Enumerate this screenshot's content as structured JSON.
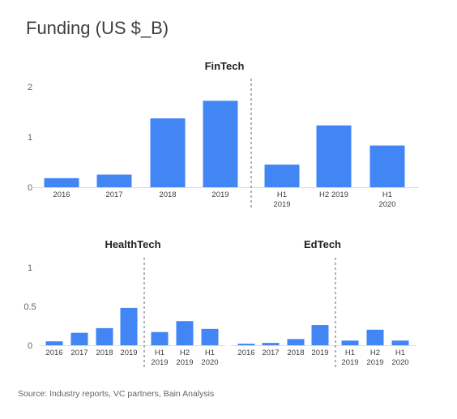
{
  "title": "Funding (US $_B)",
  "source": "Source: Industry reports, VC partners, Bain Analysis",
  "colors": {
    "bar": "#4285f4",
    "axis": "#dadce0",
    "divider": "#5f6368"
  },
  "chart_data": [
    {
      "type": "bar",
      "title": "FinTech",
      "ylim": [
        0,
        2
      ],
      "yticks": [
        "0",
        "1",
        "2"
      ],
      "categories": [
        [
          "2016"
        ],
        [
          "2017"
        ],
        [
          "2018"
        ],
        [
          "2019"
        ],
        [
          "H1",
          "2019"
        ],
        [
          "H2 2019"
        ],
        [
          "H1",
          "2020"
        ]
      ],
      "values": [
        0.18,
        0.25,
        1.37,
        1.72,
        0.45,
        1.23,
        0.83
      ],
      "divider_after": 4
    },
    {
      "type": "bar",
      "title": "HealthTech",
      "ylim": [
        0,
        1
      ],
      "yticks": [
        "0",
        "0.5",
        "1"
      ],
      "categories": [
        [
          "2016"
        ],
        [
          "2017"
        ],
        [
          "2018"
        ],
        [
          "2019"
        ],
        [
          "H1",
          "2019"
        ],
        [
          "H2",
          "2019"
        ],
        [
          "H1",
          "2020"
        ]
      ],
      "values": [
        0.05,
        0.16,
        0.22,
        0.48,
        0.17,
        0.31,
        0.21
      ],
      "divider_after": 4
    },
    {
      "type": "bar",
      "title": "EdTech",
      "ylim": [
        0,
        1
      ],
      "yticks": [],
      "categories": [
        [
          "2016"
        ],
        [
          "2017"
        ],
        [
          "2018"
        ],
        [
          "2019"
        ],
        [
          "H1",
          "2019"
        ],
        [
          "H2",
          "2019"
        ],
        [
          "H1",
          "2020"
        ]
      ],
      "values": [
        0.02,
        0.03,
        0.08,
        0.26,
        0.06,
        0.2,
        0.06
      ],
      "divider_after": 4
    }
  ]
}
